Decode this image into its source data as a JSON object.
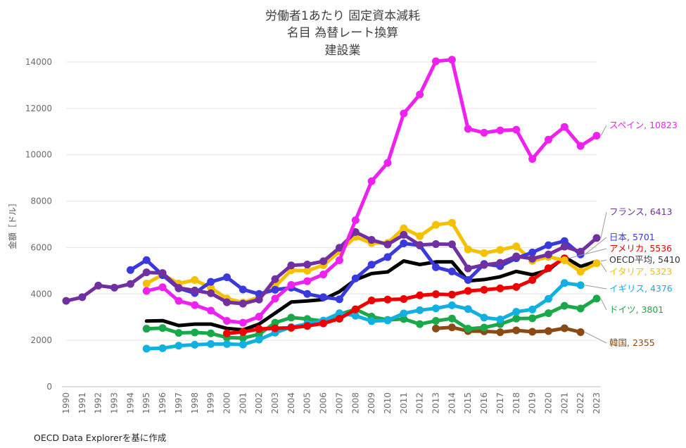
{
  "chart_data": {
    "type": "line",
    "title_lines": [
      "労働者1あたり 固定資本減耗",
      "名目 為替レート換算",
      "建設業"
    ],
    "xlabel": "",
    "ylabel": "金額［ドル］",
    "ylim": [
      0,
      14000
    ],
    "yticks": [
      0,
      2000,
      4000,
      6000,
      8000,
      10000,
      12000,
      14000
    ],
    "ytick_labels": [
      "0",
      "2000",
      "4000",
      "6000",
      "8000",
      "10000",
      "12000",
      "14000"
    ],
    "categories": [
      "1990",
      "1991",
      "1992",
      "1993",
      "1994",
      "1995",
      "1996",
      "1997",
      "1998",
      "1999",
      "2000",
      "2001",
      "2002",
      "2003",
      "2004",
      "2005",
      "2006",
      "2007",
      "2008",
      "2009",
      "2010",
      "2011",
      "2012",
      "2013",
      "2014",
      "2015",
      "2016",
      "2017",
      "2018",
      "2019",
      "2020",
      "2021",
      "2022",
      "2023"
    ],
    "series": [
      {
        "name": "スペイン",
        "color": "#ee22ee",
        "markers": true,
        "label": "スペイン, 10823",
        "values": [
          null,
          null,
          null,
          null,
          null,
          4130,
          4290,
          3700,
          3520,
          3280,
          2840,
          2760,
          3020,
          3800,
          4390,
          4550,
          4840,
          5450,
          7180,
          8860,
          9650,
          11780,
          12600,
          14030,
          14100,
          11120,
          10950,
          11050,
          11080,
          9820,
          10650,
          11200,
          10380,
          10823
        ]
      },
      {
        "name": "フランス",
        "color": "#7030a0",
        "markers": true,
        "label": "フランス, 6413",
        "values": [
          3700,
          3860,
          4360,
          4270,
          4430,
          4930,
          4900,
          4260,
          4150,
          4030,
          3640,
          3580,
          3760,
          4640,
          5230,
          5270,
          5410,
          5990,
          6670,
          6330,
          6130,
          6550,
          6110,
          6150,
          6140,
          5100,
          5250,
          5340,
          5620,
          5520,
          5700,
          6040,
          5820,
          6413
        ]
      },
      {
        "name": "日本",
        "color": "#3a3adc",
        "markers": true,
        "label": "日本, 5701",
        "values": [
          null,
          null,
          null,
          null,
          5030,
          5460,
          4810,
          4240,
          4040,
          4520,
          4720,
          4190,
          4000,
          4180,
          4270,
          4000,
          3860,
          3770,
          4670,
          5260,
          5590,
          6180,
          6090,
          5150,
          4970,
          4600,
          5290,
          5200,
          5540,
          5790,
          6100,
          6280,
          5701,
          null
        ]
      },
      {
        "name": "アメリカ",
        "color": "#ee0000",
        "markers": true,
        "label": "アメリカ, 5536",
        "values": [
          null,
          null,
          null,
          null,
          null,
          null,
          null,
          null,
          null,
          null,
          2300,
          2360,
          2490,
          2520,
          2540,
          2620,
          2730,
          2930,
          3330,
          3720,
          3760,
          3780,
          3940,
          3990,
          3970,
          4130,
          4180,
          4240,
          4300,
          4600,
          5110,
          5536,
          null,
          null
        ]
      },
      {
        "name": "OECD平均",
        "color": "#000000",
        "markers": false,
        "label": "OECD平均, 5410",
        "values": [
          null,
          null,
          null,
          null,
          null,
          2830,
          2850,
          2640,
          2700,
          2700,
          2510,
          2450,
          2700,
          3170,
          3650,
          3700,
          3760,
          4100,
          4610,
          4880,
          4950,
          5420,
          5270,
          5380,
          5380,
          4560,
          4620,
          4740,
          4970,
          4830,
          5030,
          5590,
          5180,
          5410
        ]
      },
      {
        "name": "イタリア",
        "color": "#f5c000",
        "markers": true,
        "label": "イタリア, 5323",
        "values": [
          null,
          null,
          null,
          null,
          null,
          4450,
          4830,
          4450,
          4600,
          4270,
          3800,
          3630,
          3860,
          4320,
          5020,
          5000,
          5240,
          5830,
          6460,
          6190,
          6200,
          6830,
          6490,
          6980,
          7070,
          5920,
          5760,
          5900,
          6050,
          5430,
          5600,
          5450,
          4960,
          5323
        ]
      },
      {
        "name": "イギリス",
        "color": "#12b0e0",
        "markers": true,
        "label": "イギリス, 4376",
        "values": [
          null,
          null,
          null,
          null,
          null,
          1640,
          1660,
          1770,
          1810,
          1840,
          1840,
          1820,
          2030,
          2330,
          2570,
          2710,
          2850,
          3170,
          3060,
          2830,
          2860,
          3160,
          3300,
          3380,
          3510,
          3350,
          2980,
          2900,
          3230,
          3330,
          3790,
          4470,
          4376,
          null
        ]
      },
      {
        "name": "ドイツ",
        "color": "#1aa84a",
        "markers": true,
        "label": "ドイツ, 3801",
        "values": [
          null,
          null,
          null,
          null,
          null,
          2500,
          2530,
          2320,
          2340,
          2300,
          2120,
          2100,
          2260,
          2760,
          2980,
          2920,
          2830,
          3120,
          3340,
          3020,
          2880,
          2920,
          2700,
          2840,
          2940,
          2500,
          2550,
          2700,
          2940,
          2950,
          3170,
          3490,
          3370,
          3801
        ]
      },
      {
        "name": "韓国",
        "color": "#8b4a14",
        "markers": true,
        "label": "韓国, 2355",
        "values": [
          null,
          null,
          null,
          null,
          null,
          null,
          null,
          null,
          null,
          null,
          null,
          null,
          null,
          null,
          null,
          null,
          null,
          null,
          null,
          null,
          null,
          null,
          null,
          2510,
          2560,
          2400,
          2390,
          2350,
          2430,
          2370,
          2400,
          2520,
          2355,
          null
        ]
      }
    ],
    "legend_placement": "end-of-line labels on right"
  },
  "source_note": "OECD Data Explorerを基に作成"
}
